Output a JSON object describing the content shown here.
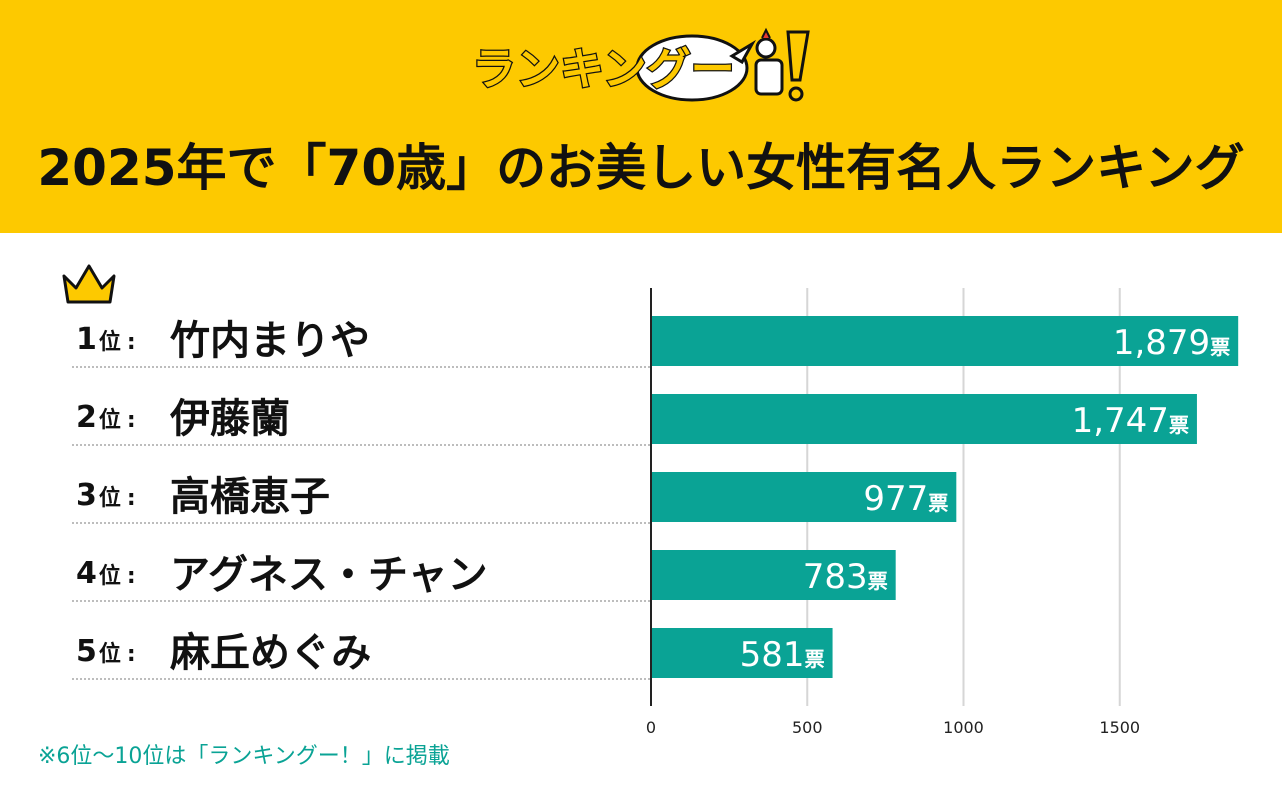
{
  "header": {
    "logo_text": "ランキングー！",
    "title": "2025年で「70歳」のお美しい女性有名人ランキング",
    "background": "#fdc900"
  },
  "crown_icon": "crown-icon",
  "ranking": [
    {
      "rank": "1",
      "pos_label": "位",
      "colon": ":",
      "name": "竹内まりや"
    },
    {
      "rank": "2",
      "pos_label": "位",
      "colon": ":",
      "name": "伊藤蘭"
    },
    {
      "rank": "3",
      "pos_label": "位",
      "colon": ":",
      "name": "高橋恵子"
    },
    {
      "rank": "4",
      "pos_label": "位",
      "colon": ":",
      "name": "アグネス・チャン"
    },
    {
      "rank": "5",
      "pos_label": "位",
      "colon": ":",
      "name": "麻丘めぐみ"
    }
  ],
  "chart_data": {
    "type": "bar",
    "orientation": "horizontal",
    "categories": [
      "竹内まりや",
      "伊藤蘭",
      "高橋恵子",
      "アグネス・チャン",
      "麻丘めぐみ"
    ],
    "values": [
      1879,
      1747,
      977,
      783,
      581
    ],
    "value_labels": [
      "1,879",
      "1,747",
      "977",
      "783",
      "581"
    ],
    "unit": "票",
    "xlim": [
      0,
      1880
    ],
    "xticks": [
      0,
      500,
      1000,
      1500
    ],
    "grid": true,
    "bar_color": "#0aa395"
  },
  "footnote": "※6位〜10位は「ランキングー！」に掲載"
}
